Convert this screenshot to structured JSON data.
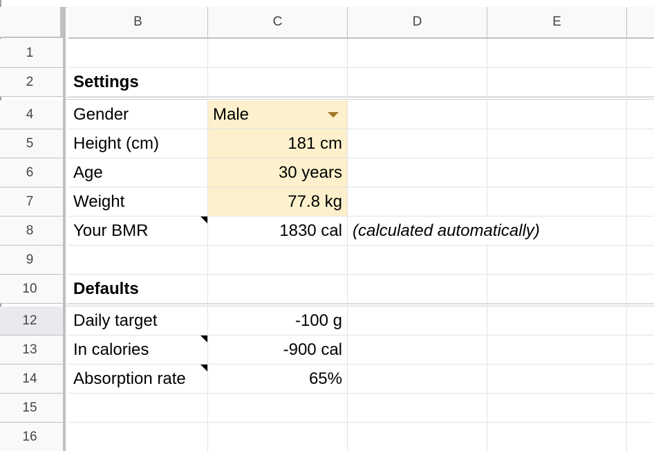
{
  "columns": [
    "B",
    "C",
    "D",
    "E"
  ],
  "rows": [
    "1",
    "2",
    "4",
    "5",
    "6",
    "7",
    "8",
    "9",
    "10",
    "12",
    "13",
    "14",
    "15",
    "16"
  ],
  "sections": {
    "settings_title": "Settings",
    "defaults_title": "Defaults"
  },
  "settings": {
    "gender_label": "Gender",
    "gender_value": "Male",
    "height_label": "Height (cm)",
    "height_value": "181 cm",
    "age_label": "Age",
    "age_value": "30 years",
    "weight_label": "Weight",
    "weight_value": "77.8 kg",
    "bmr_label": "Your BMR",
    "bmr_value": "1830 cal",
    "bmr_note": "(calculated automatically)"
  },
  "defaults": {
    "daily_target_label": "Daily target",
    "daily_target_value": "-100 g",
    "in_calories_label": "In calories",
    "in_calories_value": "-900 cal",
    "absorption_label": "Absorption rate",
    "absorption_value": "65%"
  },
  "colors": {
    "input_fill": "#fcf1cc",
    "dropdown_arrow": "#a0782a"
  }
}
